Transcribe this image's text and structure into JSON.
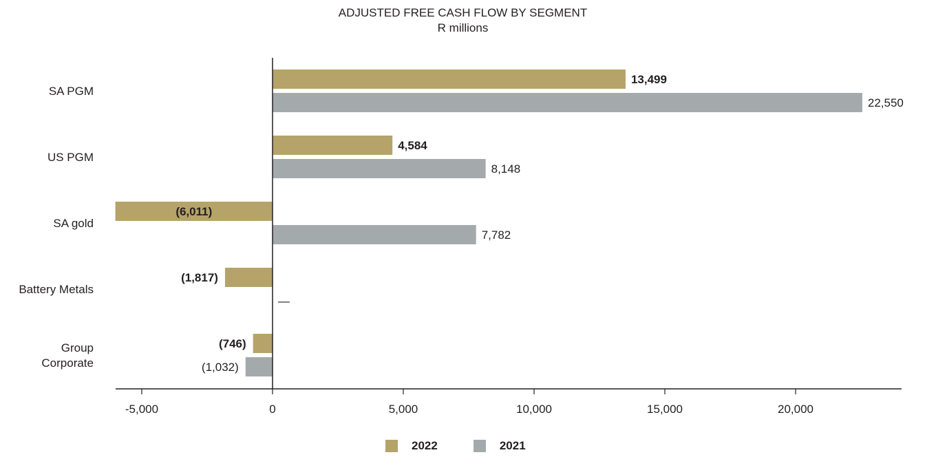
{
  "chart_data": {
    "type": "bar",
    "orientation": "horizontal",
    "title": "ADJUSTED FREE CASH FLOW BY SEGMENT",
    "subtitle": "R millions",
    "categories": [
      "SA PGM",
      "US PGM",
      "SA gold",
      "Battery Metals",
      "Group Corporate"
    ],
    "category_lines": [
      [
        "SA PGM"
      ],
      [
        "US PGM"
      ],
      [
        "SA gold"
      ],
      [
        "Battery Metals"
      ],
      [
        "Group",
        "Corporate"
      ]
    ],
    "series": [
      {
        "name": "2022",
        "color": "#b5a36a",
        "bold_labels": true,
        "values": [
          13499,
          4584,
          -6011,
          -1817,
          -746
        ],
        "labels": [
          "13,499",
          "4,584",
          "(6,011)",
          "(1,817)",
          "(746)"
        ]
      },
      {
        "name": "2021",
        "color": "#a4a9ac",
        "bold_labels": false,
        "values": [
          22550,
          8148,
          7782,
          0,
          -1032
        ],
        "labels": [
          "22,550",
          "8,148",
          "7,782",
          "—",
          "(1,032)"
        ]
      }
    ],
    "xlim": [
      -6011,
      23700
    ],
    "xticks": [
      -5000,
      0,
      5000,
      10000,
      15000,
      20000
    ],
    "xtick_labels": [
      "-5,000",
      "0",
      "5,000",
      "10,000",
      "15,000",
      "20,000"
    ],
    "grid": false,
    "legend_position": "bottom-center"
  }
}
